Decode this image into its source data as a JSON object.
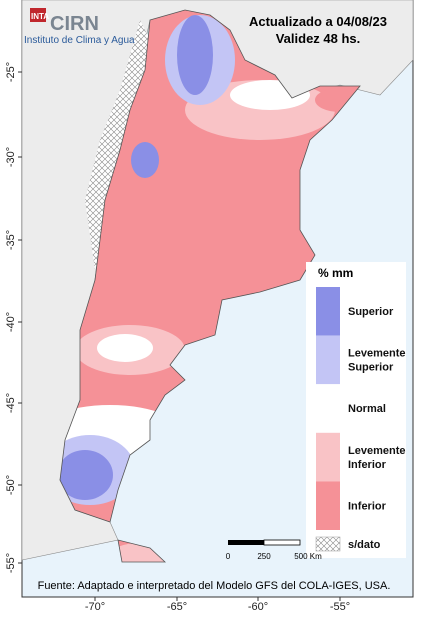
{
  "header": {
    "logo": "INTA",
    "brand": "CIRN",
    "institute": "Instituto de Clima y Agua",
    "updated": "Actualizado a 04/08/23",
    "validity": "Validez 48 hs."
  },
  "legend": {
    "title": "% mm",
    "items": [
      {
        "label": "Superior",
        "color": "#8a8fe6"
      },
      {
        "label": "Levemente Superior",
        "color": "#c3c5f5"
      },
      {
        "label": "Normal",
        "color": "#ffffff"
      },
      {
        "label": "Levemente Inferior",
        "color": "#f9c3c6"
      },
      {
        "label": "Inferior",
        "color": "#f59197"
      }
    ],
    "nodata": "s/dato"
  },
  "scale": {
    "labels": [
      "0",
      "250",
      "500 Km"
    ]
  },
  "axes": {
    "latitudes": [
      "-25°",
      "-30°",
      "-35°",
      "-40°",
      "-45°",
      "-50°",
      "-55°"
    ],
    "longitudes": [
      "-70°",
      "-65°",
      "-60°",
      "-55°"
    ]
  },
  "source": "Fuente: Adaptado e interpretado del Modelo GFS del COLA-IGES, USA."
}
